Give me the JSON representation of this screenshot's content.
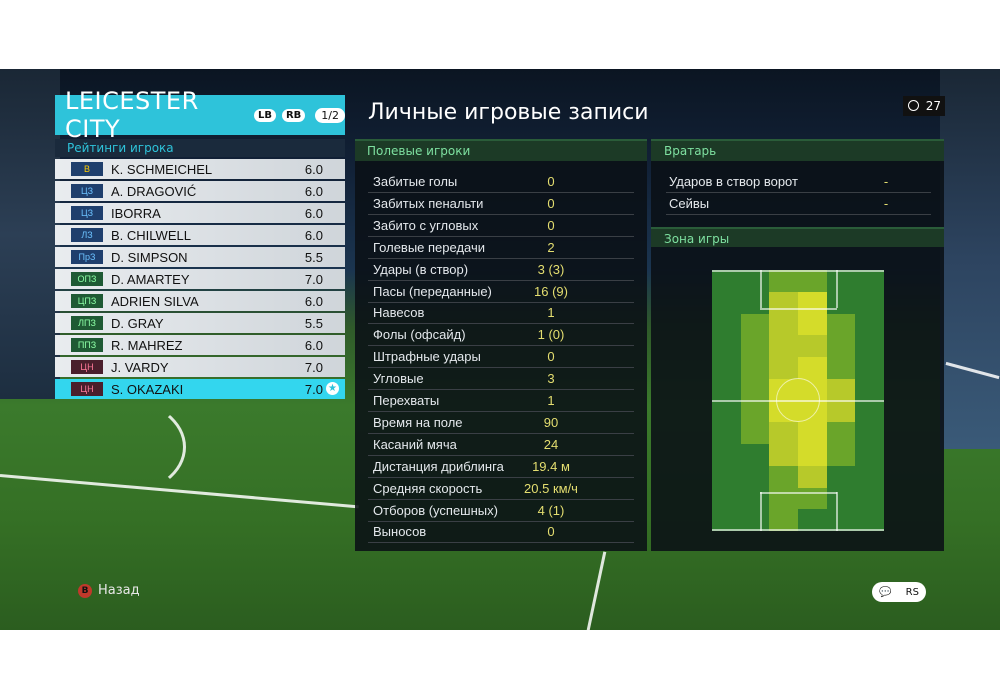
{
  "team": {
    "name": "LEICESTER CITY",
    "btn_left": "LB",
    "btn_right": "RB",
    "page": "1/2"
  },
  "ratings_title": "Рейтинги игрока",
  "players": [
    {
      "pos": "В",
      "name": "K. SCHMEICHEL",
      "rating": "6.0"
    },
    {
      "pos": "ЦЗ",
      "name": "A. DRAGOVIĆ",
      "rating": "6.0"
    },
    {
      "pos": "ЦЗ",
      "name": "IBORRA",
      "rating": "6.0"
    },
    {
      "pos": "ЛЗ",
      "name": "B. CHILWELL",
      "rating": "6.0"
    },
    {
      "pos": "ПрЗ",
      "name": "D. SIMPSON",
      "rating": "5.5"
    },
    {
      "pos": "ОПЗ",
      "name": "D. AMARTEY",
      "rating": "7.0"
    },
    {
      "pos": "ЦПЗ",
      "name": "ADRIEN SILVA",
      "rating": "6.0"
    },
    {
      "pos": "ЛПЗ",
      "name": "D. GRAY",
      "rating": "5.5"
    },
    {
      "pos": "ППЗ",
      "name": "R. MAHREZ",
      "rating": "6.0"
    },
    {
      "pos": "ЦН",
      "name": "J. VARDY",
      "rating": "7.0"
    },
    {
      "pos": "ЦН",
      "name": "S. OKAZAKI",
      "rating": "7.0"
    }
  ],
  "records_title": "Личные игровые записи",
  "timer": "27",
  "field": {
    "title": "Полевые игроки",
    "stats": [
      {
        "label": "Забитые голы",
        "value": "0"
      },
      {
        "label": "Забитых пенальти",
        "value": "0"
      },
      {
        "label": "Забито с угловых",
        "value": "0"
      },
      {
        "label": "Голевые передачи",
        "value": "2"
      },
      {
        "label": "Удары (в створ)",
        "value": "3 (3)"
      },
      {
        "label": "Пасы (переданные)",
        "value": "16 (9)"
      },
      {
        "label": "Навесов",
        "value": "1"
      },
      {
        "label": "Фолы (офсайд)",
        "value": "1 (0)"
      },
      {
        "label": "Штрафные удары",
        "value": "0"
      },
      {
        "label": "Угловые",
        "value": "3"
      },
      {
        "label": "Перехваты",
        "value": "1"
      },
      {
        "label": "Время на поле",
        "value": "90"
      },
      {
        "label": "Касаний мяча",
        "value": "24"
      },
      {
        "label": "Дистанция дриблинга",
        "value": "19.4 м"
      },
      {
        "label": "Средняя скорость",
        "value": "20.5 км/ч"
      },
      {
        "label": "Отборов (успешных)",
        "value": "4 (1)"
      },
      {
        "label": "Выносов",
        "value": "0"
      }
    ]
  },
  "goalkeeper": {
    "title": "Вратарь",
    "stats": [
      {
        "label": "Ударов в створ ворот",
        "value": "-"
      },
      {
        "label": "Сейвы",
        "value": "-"
      }
    ]
  },
  "zone_title": "Зона игры",
  "heatmap_colors": {
    "low": "#2f7d2f",
    "mid": "#6aa52a",
    "high": "#b7c92a",
    "top": "#d4dc2a"
  },
  "footer": {
    "back_label": "Назад",
    "back_button": "B",
    "right_icons": [
      "chat-icon",
      "rs-icon"
    ],
    "rs_text": "RS"
  }
}
